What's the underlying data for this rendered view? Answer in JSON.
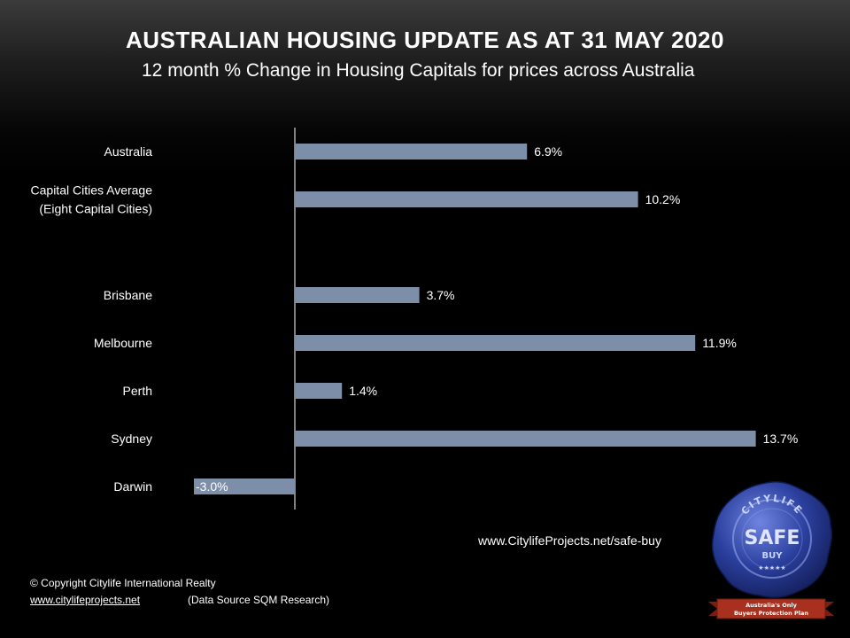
{
  "header": {
    "title": "AUSTRALIAN HOUSING UPDATE AS AT 31 MAY 2020",
    "subtitle": "12 month % Change in Housing Capitals for prices across Australia"
  },
  "chart_data": {
    "type": "bar",
    "orientation": "horizontal",
    "categories": [
      [
        "Australia"
      ],
      [
        "Capital Cities Average",
        "(Eight Capital Cities)"
      ],
      [
        ""
      ],
      [
        "Brisbane"
      ],
      [
        "Melbourne"
      ],
      [
        "Perth"
      ],
      [
        "Sydney"
      ],
      [
        "Darwin"
      ]
    ],
    "values": [
      6.9,
      10.2,
      null,
      3.7,
      11.9,
      1.4,
      13.7,
      -3.0
    ],
    "data_labels": [
      "6.9%",
      "10.2%",
      "",
      "3.7%",
      "11.9%",
      "1.4%",
      "13.7%",
      "-3.0%"
    ],
    "unit": "%",
    "bar_color": "#7d8fa8",
    "axis": "none",
    "grid": false,
    "legend": "none"
  },
  "footer": {
    "web_url": "www.CitylifeProjects.net/safe-buy",
    "copyright": "© Copyright Citylife International Realty",
    "site_link": "www.citylifeprojects.net",
    "source": "(Data Source SQM Research)"
  },
  "seal": {
    "ring_text": "CITYLIFE",
    "main_text": "SAFE",
    "sub_text": "BUY",
    "stars": "★★★★★",
    "ribbon_line1": "Australia's Only",
    "ribbon_line2": "Buyers Protection Plan",
    "wax_color": "#2b3f9e",
    "ribbon_color": "#a8301f"
  }
}
